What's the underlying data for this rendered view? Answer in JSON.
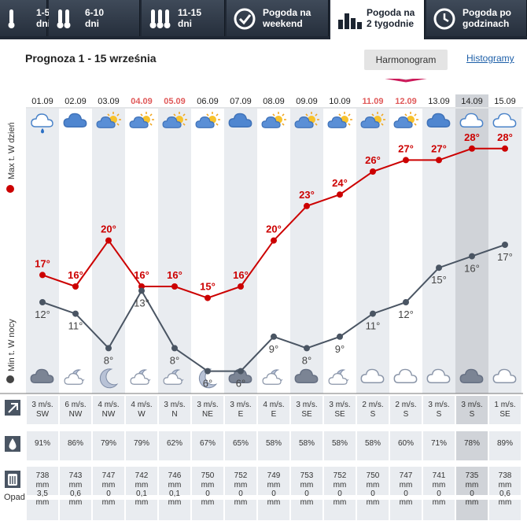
{
  "tabs": [
    {
      "label": "1-5\ndni",
      "icon": "thermometer-1-icon",
      "active": false
    },
    {
      "label": "6-10\ndni",
      "icon": "thermometer-2-icon",
      "active": false
    },
    {
      "label": "11-15\ndni",
      "icon": "thermometer-3-icon",
      "active": false
    },
    {
      "label": "Pogoda na\nweekend",
      "icon": "checkmark-icon",
      "active": false
    },
    {
      "label": "Pogoda na\n2 tygodnie",
      "icon": "bar-chart-icon",
      "active": true
    },
    {
      "label": "Pogoda po\ngodzinach",
      "icon": "clock-icon",
      "active": false
    }
  ],
  "title": "Prognoza 1 - 15 września",
  "harmonogram_label": "Harmonogram",
  "histogramy_label": "Histogramy",
  "side_labels": {
    "max": "Max t. W dzień",
    "min": "Min t. W nocy"
  },
  "row_labels": {
    "precip": "Opad"
  },
  "colors": {
    "max": "#cc0000",
    "min": "#4a5563",
    "weekend_date": "#e05a5a",
    "band": "#e9ecf0",
    "selected": "#d0d3d8",
    "accent": "#cc1a5a"
  },
  "days": [
    {
      "date": "01.09",
      "weekend": false,
      "day_icon": "cloud-rain-icon",
      "night_icon": "cloud-icon",
      "wind": "3 m/s.",
      "dir": "SW",
      "hum": "91%",
      "pres": "738",
      "unit": "mm",
      "precip": "3,5",
      "precip_unit": "mm"
    },
    {
      "date": "02.09",
      "weekend": false,
      "day_icon": "cloud-icon",
      "night_icon": "moon-cloud-icon",
      "wind": "6 m/s.",
      "dir": "NW",
      "hum": "86%",
      "pres": "743",
      "unit": "mm",
      "precip": "0,6",
      "precip_unit": "mm"
    },
    {
      "date": "03.09",
      "weekend": false,
      "day_icon": "sun-cloud-icon",
      "night_icon": "moon-icon",
      "wind": "4 m/s.",
      "dir": "NW",
      "hum": "79%",
      "pres": "747",
      "unit": "mm",
      "precip": "0",
      "precip_unit": "mm"
    },
    {
      "date": "04.09",
      "weekend": true,
      "day_icon": "sun-cloud-icon",
      "night_icon": "moon-cloud-icon",
      "wind": "4 m/s.",
      "dir": "W",
      "hum": "79%",
      "pres": "742",
      "unit": "mm",
      "precip": "0,1",
      "precip_unit": "mm"
    },
    {
      "date": "05.09",
      "weekend": true,
      "day_icon": "sun-cloud-icon",
      "night_icon": "moon-cloud-icon",
      "wind": "3 m/s.",
      "dir": "N",
      "hum": "62%",
      "pres": "746",
      "unit": "mm",
      "precip": "0,1",
      "precip_unit": "mm"
    },
    {
      "date": "06.09",
      "weekend": false,
      "day_icon": "sun-cloud-icon",
      "night_icon": "moon-icon",
      "wind": "3 m/s.",
      "dir": "NE",
      "hum": "67%",
      "pres": "750",
      "unit": "mm",
      "precip": "0",
      "precip_unit": "mm"
    },
    {
      "date": "07.09",
      "weekend": false,
      "day_icon": "cloud-icon",
      "night_icon": "cloud-icon",
      "wind": "3 m/s.",
      "dir": "E",
      "hum": "65%",
      "pres": "752",
      "unit": "mm",
      "precip": "0",
      "precip_unit": "mm"
    },
    {
      "date": "08.09",
      "weekend": false,
      "day_icon": "sun-cloud-icon",
      "night_icon": "moon-cloud-icon",
      "wind": "4 m/s.",
      "dir": "E",
      "hum": "58%",
      "pres": "749",
      "unit": "mm",
      "precip": "0",
      "precip_unit": "mm"
    },
    {
      "date": "09.09",
      "weekend": false,
      "day_icon": "sun-cloud-icon",
      "night_icon": "cloud-icon",
      "wind": "3 m/s.",
      "dir": "SE",
      "hum": "58%",
      "pres": "753",
      "unit": "mm",
      "precip": "0",
      "precip_unit": "mm"
    },
    {
      "date": "10.09",
      "weekend": false,
      "day_icon": "sun-cloud-icon",
      "night_icon": "moon-cloud-icon",
      "wind": "3 m/s.",
      "dir": "SE",
      "hum": "58%",
      "pres": "752",
      "unit": "mm",
      "precip": "0",
      "precip_unit": "mm"
    },
    {
      "date": "11.09",
      "weekend": true,
      "day_icon": "sun-cloud-icon",
      "night_icon": "cloud-outline-icon",
      "wind": "2 m/s.",
      "dir": "S",
      "hum": "58%",
      "pres": "750",
      "unit": "mm",
      "precip": "0",
      "precip_unit": "mm"
    },
    {
      "date": "12.09",
      "weekend": true,
      "day_icon": "sun-cloud-icon",
      "night_icon": "cloud-outline-icon",
      "wind": "2 m/s.",
      "dir": "S",
      "hum": "60%",
      "pres": "747",
      "unit": "mm",
      "precip": "0",
      "precip_unit": "mm"
    },
    {
      "date": "13.09",
      "weekend": false,
      "day_icon": "cloud-icon",
      "night_icon": "cloud-outline-icon",
      "wind": "3 m/s.",
      "dir": "S",
      "hum": "71%",
      "pres": "741",
      "unit": "mm",
      "precip": "0",
      "precip_unit": "mm"
    },
    {
      "date": "14.09",
      "weekend": false,
      "selected": true,
      "day_icon": "cloud-outline-icon",
      "night_icon": "cloud-icon",
      "wind": "3 m/s.",
      "dir": "S",
      "hum": "78%",
      "pres": "735",
      "unit": "mm",
      "precip": "0",
      "precip_unit": "mm"
    },
    {
      "date": "15.09",
      "weekend": false,
      "day_icon": "cloud-outline-icon",
      "night_icon": "cloud-outline-icon",
      "wind": "1 m/s.",
      "dir": "SE",
      "hum": "89%",
      "pres": "738",
      "unit": "mm",
      "precip": "0,6",
      "precip_unit": "mm"
    }
  ],
  "chart_data": {
    "type": "line",
    "categories": [
      "01.09",
      "02.09",
      "03.09",
      "04.09",
      "05.09",
      "06.09",
      "07.09",
      "08.09",
      "09.09",
      "10.09",
      "11.09",
      "12.09",
      "13.09",
      "14.09",
      "15.09"
    ],
    "series": [
      {
        "name": "Max t. W dzień",
        "values": [
          17,
          16,
          20,
          16,
          16,
          15,
          16,
          20,
          23,
          24,
          26,
          27,
          27,
          28,
          28
        ]
      },
      {
        "name": "Min t. W nocy",
        "values": [
          12,
          11,
          8,
          13,
          8,
          6,
          6,
          9,
          8,
          9,
          11,
          12,
          15,
          16,
          17
        ]
      }
    ],
    "value_suffix": "°"
  }
}
